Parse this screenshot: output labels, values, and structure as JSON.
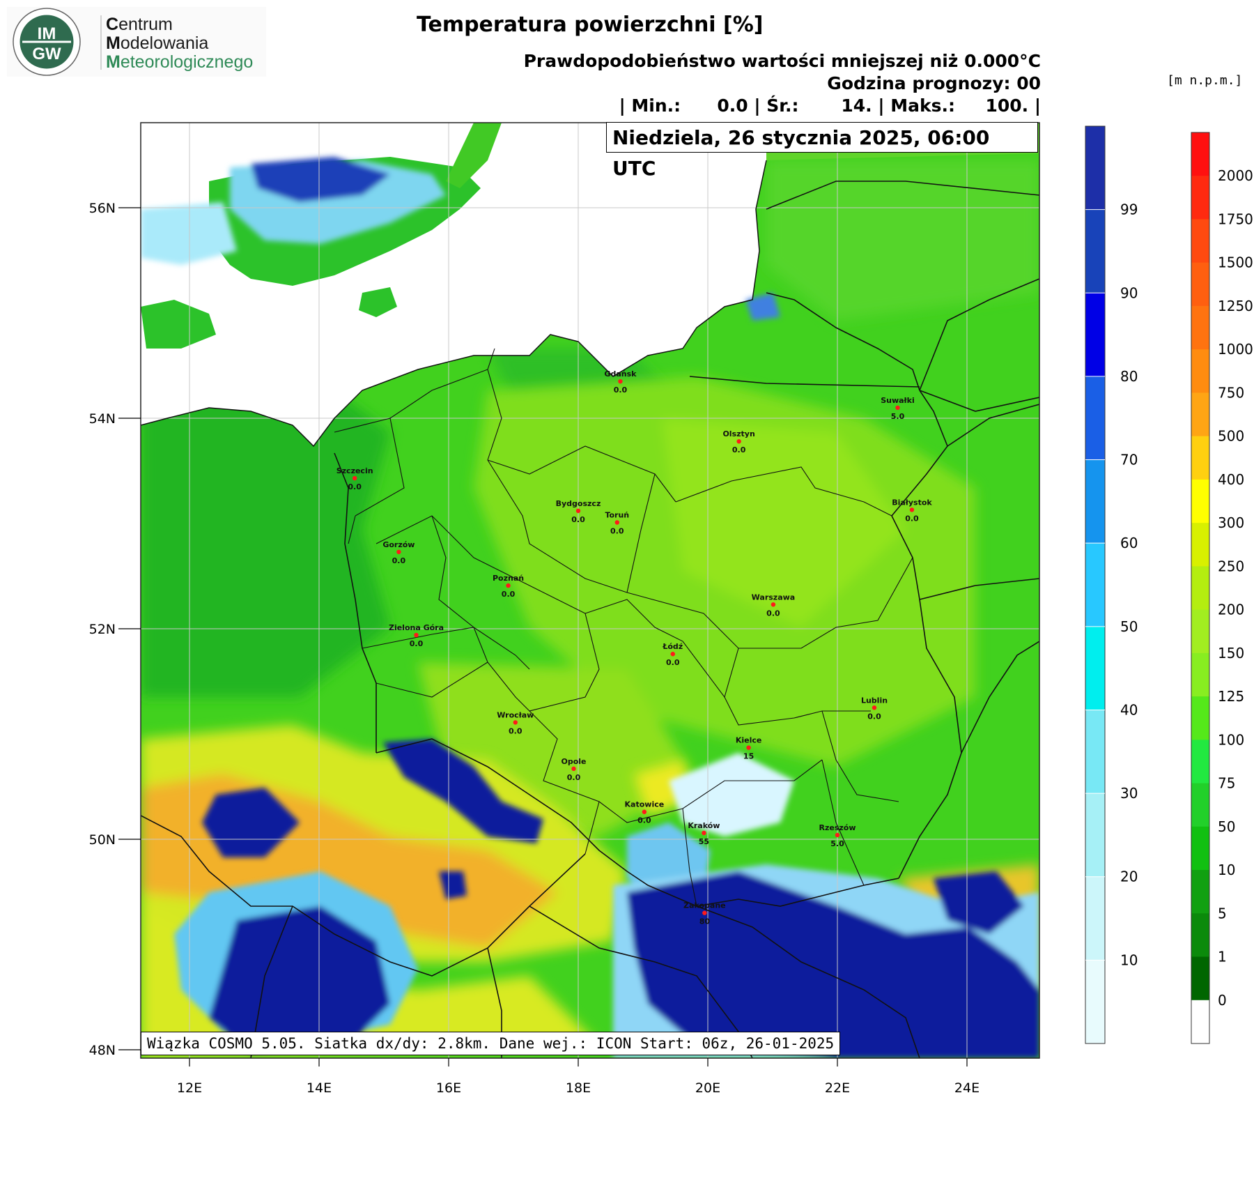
{
  "logo": {
    "badge_top": "IM",
    "badge_bottom": "GW",
    "ring_text": "INSTYTUT METEOROLOGII I GOSPODARKI WODNEJ",
    "line1_cap": "C",
    "line1_rest": "entrum",
    "line2_cap": "M",
    "line2_rest": "odelowania",
    "line3_cap": "M",
    "line3_rest": "eteorologicznego"
  },
  "header": {
    "title": "Temperatura powierzchni [%]",
    "subtitle": "Prawdopodobieństwo wartości mniejszej niż 0.000°C",
    "forecast_hour": "Godzina prognozy: 00",
    "stats": "| Min.:      0.0 | Śr.:       14. | Maks.:     100. |",
    "date": "Niedziela, 26 stycznia 2025, 06:00 UTC",
    "units": "[m n.p.m.]"
  },
  "footer": {
    "model_info": "Wiązka COSMO 5.05. Siatka dx/dy: 2.8km. Dane wej.: ICON Start: 06z, 26-01-2025"
  },
  "axes": {
    "lat_labels": [
      "56N",
      "54N",
      "52N",
      "50N",
      "48N"
    ],
    "lon_labels": [
      "12E",
      "14E",
      "16E",
      "18E",
      "20E",
      "22E",
      "24E"
    ]
  },
  "colors": {
    "sea": "#ffffff",
    "land_green": "#3fcf1f",
    "land_dark": "#1fb420",
    "land_light": "#8fe21a",
    "probability_high": "#0011a0",
    "probability_mid": "#5fc8ff",
    "probability_low": "#d6f6ff",
    "elevation_yellow": "#ddee22",
    "elevation_orange": "#f5aa2a"
  },
  "probability_scale": {
    "labels": [
      "99",
      "90",
      "80",
      "70",
      "60",
      "50",
      "40",
      "30",
      "20",
      "10"
    ],
    "colors": [
      "#1d2fa8",
      "#1843b9",
      "#0000e6",
      "#1a5fe6",
      "#1594ee",
      "#28c8ff",
      "#00eeee",
      "#78e8f5",
      "#a6f0f6",
      "#ccf6fa",
      "#e8fbfd"
    ]
  },
  "elevation_scale": {
    "labels": [
      "2000",
      "1750",
      "1500",
      "1250",
      "1000",
      "750",
      "500",
      "400",
      "300",
      "250",
      "200",
      "150",
      "125",
      "100",
      "75",
      "50",
      "10",
      "5",
      "1",
      "0"
    ],
    "colors": [
      "#ff1010",
      "#ff2a10",
      "#ff4a10",
      "#ff5f10",
      "#ff7310",
      "#ff8c10",
      "#ffa514",
      "#ffd010",
      "#ffff00",
      "#d8f000",
      "#b4ee10",
      "#a2ee20",
      "#88ee20",
      "#55e81a",
      "#22e840",
      "#22d02a",
      "#11c011",
      "#11a011",
      "#0b8a0b",
      "#006600",
      "#ffffff"
    ]
  },
  "cities": [
    {
      "name": "Gdańsk",
      "value": "0.0",
      "lon": 18.65,
      "lat": 54.35
    },
    {
      "name": "Szczecin",
      "value": "0.0",
      "lon": 14.55,
      "lat": 53.43
    },
    {
      "name": "Olsztyn",
      "value": "0.0",
      "lon": 20.48,
      "lat": 53.78
    },
    {
      "name": "Suwałki",
      "value": "5.0",
      "lon": 22.93,
      "lat": 54.1
    },
    {
      "name": "Bydgoszcz",
      "value": "0.0",
      "lon": 18.0,
      "lat": 53.12
    },
    {
      "name": "Toruń",
      "value": "0.0",
      "lon": 18.6,
      "lat": 53.01
    },
    {
      "name": "Białystok",
      "value": "0.0",
      "lon": 23.15,
      "lat": 53.13
    },
    {
      "name": "Gorzów",
      "value": "0.0",
      "lon": 15.23,
      "lat": 52.73
    },
    {
      "name": "Poznań",
      "value": "0.0",
      "lon": 16.92,
      "lat": 52.41
    },
    {
      "name": "Warszawa",
      "value": "0.0",
      "lon": 21.01,
      "lat": 52.23
    },
    {
      "name": "Zielona Góra",
      "value": "0.0",
      "lon": 15.5,
      "lat": 51.94
    },
    {
      "name": "Łódź",
      "value": "0.0",
      "lon": 19.46,
      "lat": 51.76
    },
    {
      "name": "Lublin",
      "value": "0.0",
      "lon": 22.57,
      "lat": 51.25
    },
    {
      "name": "Wrocław",
      "value": "0.0",
      "lon": 17.03,
      "lat": 51.11
    },
    {
      "name": "Kielce",
      "value": "15",
      "lon": 20.63,
      "lat": 50.87
    },
    {
      "name": "Opole",
      "value": "0.0",
      "lon": 17.93,
      "lat": 50.67
    },
    {
      "name": "Katowice",
      "value": "0.0",
      "lon": 19.02,
      "lat": 50.26
    },
    {
      "name": "Kraków",
      "value": "55",
      "lon": 19.94,
      "lat": 50.06
    },
    {
      "name": "Rzeszów",
      "value": "5.0",
      "lon": 22.0,
      "lat": 50.04
    },
    {
      "name": "Zakopane",
      "value": "80",
      "lon": 19.95,
      "lat": 49.3
    }
  ]
}
